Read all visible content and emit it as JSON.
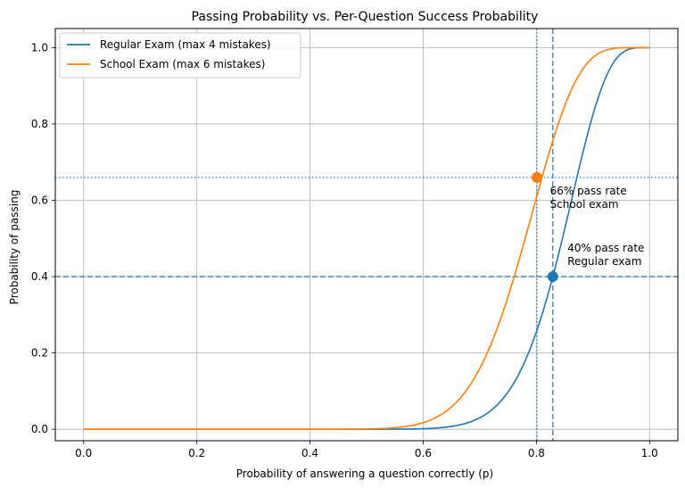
{
  "chart_data": {
    "type": "line",
    "title": "Passing Probability vs. Per-Question Success Probability",
    "xlabel": "Probability of answering a question correctly (p)",
    "ylabel": "Probability of passing",
    "xlim": [
      -0.05,
      1.05
    ],
    "ylim": [
      -0.03,
      1.05
    ],
    "xticks": [
      0.0,
      0.2,
      0.4,
      0.6,
      0.8,
      1.0
    ],
    "xtick_labels": [
      "0.0",
      "0.2",
      "0.4",
      "0.6",
      "0.8",
      "1.0"
    ],
    "yticks": [
      0.0,
      0.2,
      0.4,
      0.6,
      0.8,
      1.0
    ],
    "ytick_labels": [
      "0.0",
      "0.2",
      "0.4",
      "0.6",
      "0.8",
      "1.0"
    ],
    "grid": true,
    "legend_position": "top-left",
    "series": [
      {
        "name": "Regular Exam (max 4 mistakes)",
        "color": "#1f77b4",
        "total_questions": 30,
        "max_mistakes": 4
      },
      {
        "name": "School Exam (max 6 mistakes)",
        "color": "#ff7f0e",
        "total_questions": 30,
        "max_mistakes": 6
      }
    ],
    "reference_lines": [
      {
        "orientation": "horizontal",
        "value": 0.4,
        "style": "dashed",
        "color": "#1f77b4"
      },
      {
        "orientation": "vertical",
        "value": 0.829,
        "style": "dashed",
        "color": "#1f77b4"
      },
      {
        "orientation": "horizontal",
        "value": 0.66,
        "style": "dotted",
        "color": "#1f77b4"
      },
      {
        "orientation": "vertical",
        "value": 0.801,
        "style": "dotted",
        "color": "#1f77b4"
      }
    ],
    "markers": [
      {
        "x": 0.829,
        "y": 0.4,
        "color": "#1f77b4"
      },
      {
        "x": 0.801,
        "y": 0.66,
        "color": "#ff7f0e"
      }
    ],
    "annotations": [
      {
        "lines": [
          "40% pass rate",
          "Regular exam"
        ],
        "x": 0.855,
        "y": 0.43
      },
      {
        "lines": [
          "66% pass rate",
          "School exam"
        ],
        "x": 0.824,
        "y": 0.58
      }
    ]
  }
}
